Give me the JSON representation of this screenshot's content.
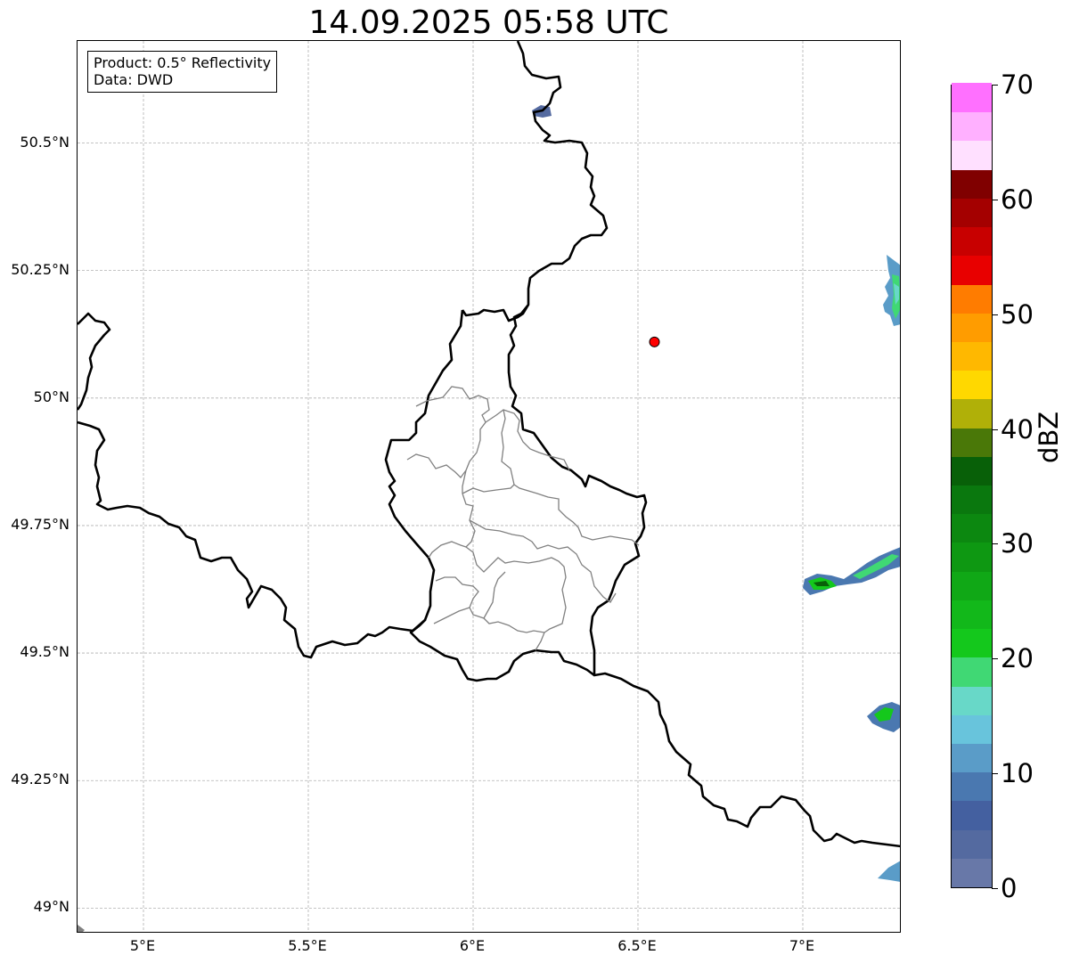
{
  "title": "14.09.2025 05:58 UTC",
  "info": {
    "product": "Product: 0.5° Reflectivity",
    "source": "Data: DWD"
  },
  "axes": {
    "lat_labels": [
      "50.5°N",
      "50.25°N",
      "50°N",
      "49.75°N",
      "49.5°N",
      "49.25°N",
      "49°N"
    ],
    "lat_values": [
      50.5,
      50.25,
      50.0,
      49.75,
      49.5,
      49.25,
      49.0
    ],
    "lon_labels": [
      "5°E",
      "5.5°E",
      "6°E",
      "6.5°E",
      "7°E"
    ],
    "lon_values": [
      5.0,
      5.5,
      6.0,
      6.5,
      7.0
    ],
    "lon_range": [
      4.8,
      7.3
    ],
    "lat_range": [
      48.95,
      50.7
    ],
    "grid": true
  },
  "marker": {
    "lon": 6.55,
    "lat": 50.11,
    "color": "#ff0000"
  },
  "colorbar": {
    "unit": "dBZ",
    "min": 0,
    "max": 70,
    "tick_labels": [
      "0",
      "10",
      "20",
      "30",
      "40",
      "50",
      "60",
      "70"
    ],
    "tick_values": [
      0,
      10,
      20,
      30,
      40,
      50,
      60,
      70
    ],
    "step": 2.5,
    "colors": [
      "#6878a8",
      "#546aa0",
      "#4460a0",
      "#4a78b0",
      "#5a9cc8",
      "#68c4dc",
      "#68d8c8",
      "#40d874",
      "#14c81c",
      "#12b81a",
      "#10a816",
      "#0e9812",
      "#0c8810",
      "#0a780e",
      "#086008",
      "#4a7808",
      "#b0b008",
      "#ffd800",
      "#ffb800",
      "#ff9c00",
      "#ff7c00",
      "#e80000",
      "#c80000",
      "#a40000",
      "#800000",
      "#ffe0ff",
      "#ffb0ff",
      "#ff70ff",
      "#f040f0"
    ]
  },
  "colors": {
    "border": "#000000",
    "district": "#808080",
    "grid": "#b0b0b0"
  }
}
